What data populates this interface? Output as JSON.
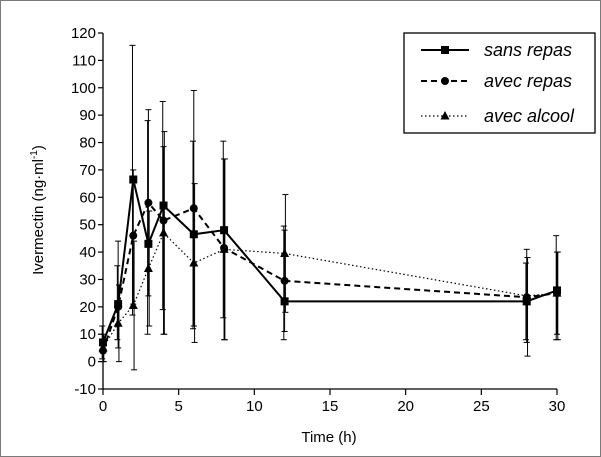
{
  "chart_data": {
    "type": "line",
    "title": "",
    "xlabel": "Time (h)",
    "ylabel": "Ivermectin (ng·ml",
    "ylabel_superscript": "-1",
    "ylabel_suffix": ")",
    "xlim": [
      0,
      30
    ],
    "ylim": [
      -10,
      120
    ],
    "xticks": [
      0,
      5,
      10,
      15,
      20,
      25,
      30
    ],
    "yticks": [
      -10,
      0,
      10,
      20,
      30,
      40,
      50,
      60,
      70,
      80,
      90,
      100,
      110,
      120
    ],
    "grid": false,
    "legend_position": "top-right",
    "series": [
      {
        "name": "sans repas",
        "marker": "square",
        "line_style": "solid",
        "color": "#000000",
        "points": [
          {
            "x": 0,
            "y": 7,
            "err_low": 1,
            "err_high": 13
          },
          {
            "x": 1,
            "y": 21,
            "err_low": 8,
            "err_high": 35
          },
          {
            "x": 2,
            "y": 66.5,
            "err_low": 17,
            "err_high": 115.5
          },
          {
            "x": 3,
            "y": 43,
            "err_low": 10,
            "err_high": 88
          },
          {
            "x": 4,
            "y": 57,
            "err_low": 19,
            "err_high": 95
          },
          {
            "x": 6,
            "y": 46.5,
            "err_low": 12,
            "err_high": 80.5
          },
          {
            "x": 8,
            "y": 48,
            "err_low": 16,
            "err_high": 80.5
          },
          {
            "x": 12,
            "y": 22,
            "err_low": 8,
            "err_high": 49.5
          },
          {
            "x": 28,
            "y": 22,
            "err_low": 8,
            "err_high": 36
          },
          {
            "x": 30,
            "y": 26,
            "err_low": 8,
            "err_high": 46
          }
        ]
      },
      {
        "name": "avec repas",
        "marker": "circle",
        "line_style": "dashed",
        "color": "#000000",
        "points": [
          {
            "x": 0,
            "y": 4,
            "err_low": 0,
            "err_high": 7
          },
          {
            "x": 1,
            "y": 20,
            "err_low": 5,
            "err_high": 44
          },
          {
            "x": 2,
            "y": 46,
            "err_low": 21,
            "err_high": 70
          },
          {
            "x": 3,
            "y": 58,
            "err_low": 24,
            "err_high": 92
          },
          {
            "x": 4,
            "y": 51.5,
            "err_low": 10,
            "err_high": 78.5
          },
          {
            "x": 6,
            "y": 56,
            "err_low": 13,
            "err_high": 99
          },
          {
            "x": 8,
            "y": 41.5,
            "err_low": 8,
            "err_high": 74
          },
          {
            "x": 12,
            "y": 29.5,
            "err_low": 11,
            "err_high": 48
          },
          {
            "x": 28,
            "y": 23.5,
            "err_low": 7,
            "err_high": 41
          },
          {
            "x": 30,
            "y": 25,
            "err_low": 10,
            "err_high": 40
          }
        ]
      },
      {
        "name": "avec alcool",
        "marker": "triangle",
        "line_style": "dotted",
        "color": "#000000",
        "points": [
          {
            "x": 0,
            "y": 5,
            "err_low": 0,
            "err_high": 10
          },
          {
            "x": 1,
            "y": 14,
            "err_low": 0,
            "err_high": 28
          },
          {
            "x": 2,
            "y": 20.5,
            "err_low": -3,
            "err_high": 44
          },
          {
            "x": 3,
            "y": 34,
            "err_low": 13,
            "err_high": 55
          },
          {
            "x": 4,
            "y": 47,
            "err_low": 10,
            "err_high": 84
          },
          {
            "x": 6,
            "y": 36,
            "err_low": 7,
            "err_high": 65
          },
          {
            "x": 8,
            "y": 41,
            "err_low": 8,
            "err_high": 74
          },
          {
            "x": 12,
            "y": 39.5,
            "err_low": 18,
            "err_high": 61
          },
          {
            "x": 28,
            "y": 24,
            "err_low": 2,
            "err_high": 38
          },
          {
            "x": 30,
            "y": 25,
            "err_low": 8,
            "err_high": 40
          }
        ]
      }
    ]
  }
}
